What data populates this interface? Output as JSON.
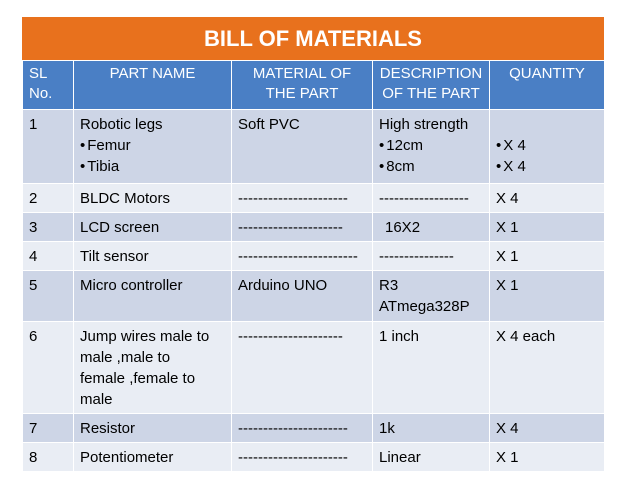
{
  "title": "BILL OF MATERIALS",
  "headers": {
    "sl": [
      "SL",
      "No."
    ],
    "part_name": "PART NAME",
    "material": [
      "MATERIAL OF",
      "THE PART"
    ],
    "description": [
      "DESCRIPTION",
      "OF THE PART"
    ],
    "quantity": "QUANTITY"
  },
  "rows": [
    {
      "sl": "1",
      "part": "Robotic legs",
      "part_bullets": [
        "Femur",
        "Tibia"
      ],
      "material": "Soft PVC",
      "description": "High strength",
      "description_bullets": [
        "12cm",
        "8cm"
      ],
      "quantity_bullets": [
        "X 4",
        "X 4"
      ]
    },
    {
      "sl": "2",
      "part": "BLDC Motors",
      "material": "----------------------",
      "description": "------------------",
      "quantity": "X 4"
    },
    {
      "sl": "3",
      "part": "LCD screen",
      "material": "---------------------",
      "description": "16X2",
      "quantity": "X 1"
    },
    {
      "sl": "4",
      "part": "Tilt sensor",
      "material": "------------------------",
      "description": "---------------",
      "quantity": "X 1"
    },
    {
      "sl": "5",
      "part": "Micro controller",
      "material": "Arduino UNO",
      "description_lines": [
        "R3",
        "ATmega328P"
      ],
      "quantity": "X 1"
    },
    {
      "sl": "6",
      "part_lines": [
        "Jump wires male to",
        "male ,male to",
        "female ,female to",
        "male"
      ],
      "material": "---------------------",
      "description": "1 inch",
      "quantity": "X 4 each"
    },
    {
      "sl": "7",
      "part": "Resistor",
      "material": "----------------------",
      "description": "1k",
      "quantity": "X 4"
    },
    {
      "sl": "8",
      "part": "Potentiometer",
      "material": "----------------------",
      "description": "Linear",
      "quantity": "X 1"
    }
  ]
}
